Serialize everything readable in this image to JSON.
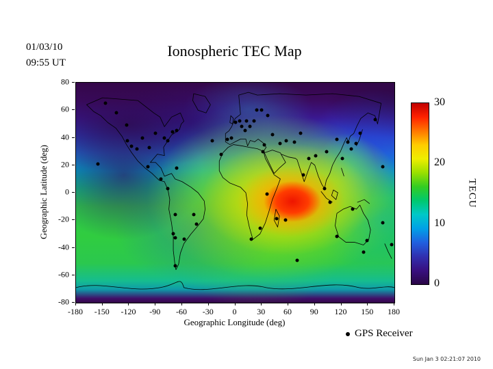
{
  "header": {
    "date": "01/03/10",
    "time": "09:55 UT",
    "title": "Ionospheric TEC Map"
  },
  "chart_data": {
    "type": "heatmap",
    "title": "Ionospheric TEC Map",
    "xlabel": "Geographic Longitude (deg)",
    "ylabel": "Geographic Latitude (deg)",
    "xlim": [
      -180,
      180
    ],
    "ylim": [
      -80,
      80
    ],
    "xticks": [
      -180,
      -150,
      -120,
      -90,
      -60,
      -30,
      0,
      30,
      60,
      90,
      120,
      150,
      180
    ],
    "yticks": [
      80,
      60,
      40,
      20,
      0,
      -20,
      -40,
      -60,
      -80
    ],
    "grid": false,
    "colorbar": {
      "label": "TECU",
      "min": 0,
      "max": 30,
      "ticks": [
        30,
        20,
        10,
        0
      ],
      "colors": [
        "#c00000",
        "#ff2200",
        "#ff7700",
        "#ffcc00",
        "#eeee00",
        "#99e000",
        "#33cc22",
        "#00c86e",
        "#00c8c8",
        "#00a0e6",
        "#2060e0",
        "#3030b0",
        "#381080",
        "#2a0646"
      ]
    },
    "hotspot": {
      "lon": 65,
      "lat": -8,
      "tec": 30
    },
    "sample_values_tecu": [
      {
        "lon": 65,
        "lat": -8,
        "tec": 30
      },
      {
        "lon": 30,
        "lat": 0,
        "tec": 22
      },
      {
        "lon": 110,
        "lat": 10,
        "tec": 18
      },
      {
        "lon": -120,
        "lat": 10,
        "tec": 5
      },
      {
        "lon": -90,
        "lat": 45,
        "tec": 3
      },
      {
        "lon": 0,
        "lat": 70,
        "tec": 2
      },
      {
        "lon": 0,
        "lat": -55,
        "tec": 15
      },
      {
        "lon": 150,
        "lat": 35,
        "tec": 8
      },
      {
        "lon": -60,
        "lat": -30,
        "tec": 12
      },
      {
        "lon": 0,
        "lat": -78,
        "tec": 2
      }
    ],
    "gps_receivers": [
      [
        -147,
        65
      ],
      [
        -134,
        58
      ],
      [
        -123,
        49
      ],
      [
        -122,
        38
      ],
      [
        -117,
        34
      ],
      [
        -111,
        32
      ],
      [
        -105,
        40
      ],
      [
        -97,
        33
      ],
      [
        -90,
        43
      ],
      [
        -80,
        40
      ],
      [
        -76,
        38
      ],
      [
        -71,
        44
      ],
      [
        -66,
        45
      ],
      [
        -155,
        21
      ],
      [
        -99,
        19
      ],
      [
        -84,
        10
      ],
      [
        -66,
        18
      ],
      [
        -76,
        3
      ],
      [
        -68,
        -16
      ],
      [
        -70,
        -30
      ],
      [
        -68,
        -33
      ],
      [
        -58,
        -34
      ],
      [
        -47,
        -16
      ],
      [
        -44,
        -23
      ],
      [
        -68,
        -53
      ],
      [
        -26,
        38
      ],
      [
        -16,
        28
      ],
      [
        -9,
        39
      ],
      [
        -4,
        40
      ],
      [
        0,
        51
      ],
      [
        5,
        52
      ],
      [
        7,
        48
      ],
      [
        11,
        45
      ],
      [
        13,
        52
      ],
      [
        17,
        48
      ],
      [
        21,
        52
      ],
      [
        24,
        60
      ],
      [
        30,
        60
      ],
      [
        37,
        56
      ],
      [
        42,
        42
      ],
      [
        33,
        35
      ],
      [
        31,
        30
      ],
      [
        28,
        -26
      ],
      [
        18,
        -34
      ],
      [
        36,
        -1
      ],
      [
        47,
        -19
      ],
      [
        57,
        -20
      ],
      [
        51,
        36
      ],
      [
        58,
        38
      ],
      [
        67,
        37
      ],
      [
        74,
        43
      ],
      [
        77,
        13
      ],
      [
        83,
        25
      ],
      [
        91,
        27
      ],
      [
        103,
        30
      ],
      [
        115,
        39
      ],
      [
        121,
        25
      ],
      [
        127,
        37
      ],
      [
        137,
        36
      ],
      [
        141,
        43
      ],
      [
        131,
        32
      ],
      [
        101,
        3
      ],
      [
        107,
        -7
      ],
      [
        115,
        -32
      ],
      [
        133,
        -12
      ],
      [
        149,
        -35
      ],
      [
        145,
        -43
      ],
      [
        167,
        -22
      ],
      [
        177,
        -38
      ],
      [
        158,
        53
      ],
      [
        167,
        19
      ],
      [
        70,
        -49
      ]
    ]
  },
  "legend": {
    "label": "GPS Receiver"
  },
  "footer": {
    "timestamp": "Sun Jan 3 02:21:07 2010"
  }
}
